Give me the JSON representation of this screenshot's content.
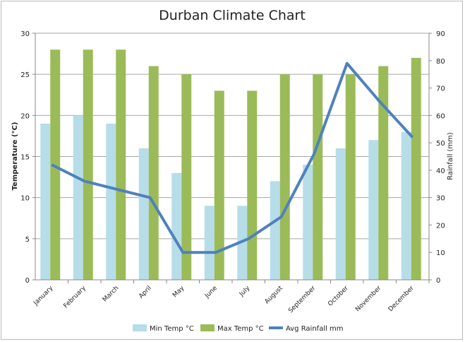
{
  "chart_data": {
    "type": "bar+line",
    "title": "Durban Climate Chart",
    "ylabel": "Temperature  (°C)",
    "y2label": "Rainfall (mm)",
    "ylim": [
      0,
      30
    ],
    "y2lim": [
      0,
      90
    ],
    "yticks": [
      0,
      5,
      10,
      15,
      20,
      25,
      30
    ],
    "y2ticks": [
      0,
      10,
      20,
      30,
      40,
      50,
      60,
      70,
      80,
      90
    ],
    "grid": true,
    "legend": "bottom",
    "categories": [
      "January",
      "February",
      "March",
      "April",
      "May",
      "June",
      "July",
      "August",
      "September",
      "October",
      "November",
      "December"
    ],
    "series": [
      {
        "name": "Min Temp °C",
        "type": "bar",
        "axis": "left",
        "color": "#b7dde8",
        "values": [
          19,
          20,
          19,
          16,
          13,
          9,
          9,
          12,
          14,
          16,
          17,
          18
        ]
      },
      {
        "name": "Max Temp °C",
        "type": "bar",
        "axis": "left",
        "color": "#9bbb59",
        "values": [
          28,
          28,
          28,
          26,
          25,
          23,
          23,
          25,
          25,
          25,
          26,
          27
        ]
      },
      {
        "name": "Avg Rainfall mm",
        "type": "line",
        "axis": "right",
        "color": "#4f81bd",
        "values": [
          42,
          36,
          33,
          30,
          10,
          10,
          15,
          23,
          46,
          79,
          65,
          52
        ]
      }
    ]
  }
}
